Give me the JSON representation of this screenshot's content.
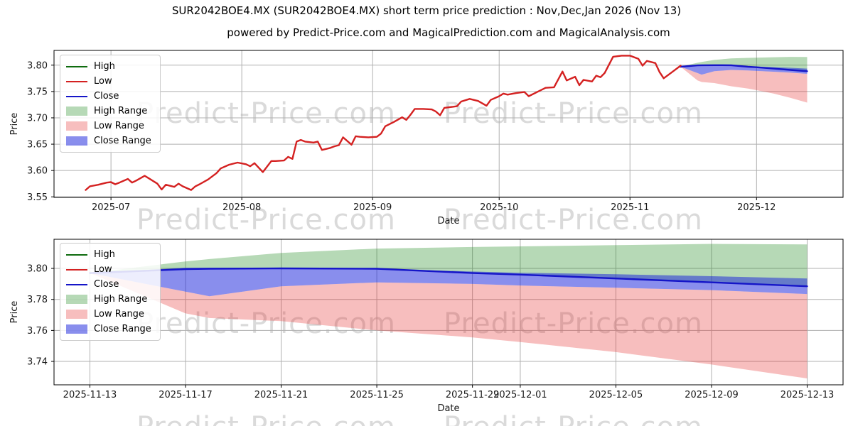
{
  "title": "SUR2042BOE4.MX (SUR2042BOE4.MX) short term price prediction : Nov,Dec,Jan 2026 (Nov 13)",
  "subtitle": "powered by Predict-Price.com and MagicalPrediction.com and MagicalAnalysis.com",
  "watermark": {
    "text": "Predict-Price.com",
    "color": "#dadada"
  },
  "colors": {
    "high_line": "#0e6b0e",
    "low_line": "#d42121",
    "close_line": "#1515c8",
    "high_band": "rgba(34,139,34,0.33)",
    "low_band": "rgba(230,40,40,0.30)",
    "close_band": "rgba(20,30,220,0.50)",
    "grid": "#b0b0b0",
    "frame": "#000000",
    "tick_label": "#1a1a1a"
  },
  "legend": {
    "items": [
      {
        "label": "High",
        "swatch": "line",
        "color_key": "high_line"
      },
      {
        "label": "Low",
        "swatch": "line",
        "color_key": "low_line"
      },
      {
        "label": "Close",
        "swatch": "line",
        "color_key": "close_line"
      },
      {
        "label": "High Range",
        "swatch": "patch",
        "color_key": "high_band"
      },
      {
        "label": "Low Range",
        "swatch": "patch",
        "color_key": "low_band"
      },
      {
        "label": "Close Range",
        "swatch": "patch",
        "color_key": "close_band"
      }
    ]
  },
  "prediction": {
    "start_date": "2025-11-13",
    "days_after_start": [
      0,
      4,
      5,
      8,
      12,
      16,
      18,
      22,
      26,
      30
    ],
    "close": [
      3.797,
      3.7995,
      3.7998,
      3.8,
      3.7998,
      3.797,
      3.796,
      3.7935,
      3.791,
      3.7885
    ],
    "high_range_top": [
      3.797,
      3.8045,
      3.806,
      3.81,
      3.8128,
      3.8138,
      3.8142,
      3.815,
      3.8158,
      3.8155
    ],
    "close_range_top": [
      3.797,
      3.8005,
      3.8005,
      3.8005,
      3.7998,
      3.798,
      3.7972,
      3.7962,
      3.795,
      3.7935
    ],
    "close_range_bottom": [
      3.797,
      3.785,
      3.782,
      3.7885,
      3.791,
      3.79,
      3.789,
      3.7875,
      3.786,
      3.7835
    ],
    "low_range_bottom": [
      3.797,
      3.771,
      3.768,
      3.766,
      3.76,
      3.7555,
      3.7525,
      3.746,
      3.738,
      3.729
    ]
  },
  "chart_data": [
    {
      "type": "line",
      "name": "history-chart",
      "xlabel": "Date",
      "ylabel": "Price",
      "x_unit": "days since 2025-06-25",
      "xlim_days": [
        -7.5,
        179.5
      ],
      "ylim": [
        3.549,
        3.828
      ],
      "xticks": [
        {
          "day": 6,
          "label": "2025-07"
        },
        {
          "day": 37,
          "label": "2025-08"
        },
        {
          "day": 68,
          "label": "2025-09"
        },
        {
          "day": 98,
          "label": "2025-10"
        },
        {
          "day": 129,
          "label": "2025-11"
        },
        {
          "day": 159,
          "label": "2025-12"
        }
      ],
      "yticks": [
        3.55,
        3.6,
        3.65,
        3.7,
        3.75,
        3.8
      ],
      "prediction_day_offset": 141,
      "low_history_series": {
        "name": "Low",
        "points": [
          [
            0,
            3.563
          ],
          [
            1,
            3.57
          ],
          [
            3,
            3.573
          ],
          [
            5,
            3.577
          ],
          [
            6,
            3.578
          ],
          [
            7,
            3.574
          ],
          [
            8,
            3.577
          ],
          [
            10,
            3.584
          ],
          [
            11,
            3.577
          ],
          [
            12,
            3.581
          ],
          [
            14,
            3.59
          ],
          [
            15,
            3.585
          ],
          [
            17,
            3.575
          ],
          [
            18,
            3.564
          ],
          [
            19,
            3.573
          ],
          [
            21,
            3.569
          ],
          [
            22,
            3.575
          ],
          [
            23,
            3.57
          ],
          [
            25,
            3.563
          ],
          [
            26,
            3.57
          ],
          [
            27,
            3.574
          ],
          [
            29,
            3.583
          ],
          [
            31,
            3.595
          ],
          [
            32,
            3.604
          ],
          [
            34,
            3.611
          ],
          [
            36,
            3.615
          ],
          [
            38,
            3.612
          ],
          [
            39,
            3.608
          ],
          [
            40,
            3.614
          ],
          [
            42,
            3.597
          ],
          [
            44,
            3.618
          ],
          [
            45,
            3.618
          ],
          [
            47,
            3.619
          ],
          [
            48,
            3.626
          ],
          [
            49,
            3.622
          ],
          [
            50,
            3.655
          ],
          [
            51,
            3.658
          ],
          [
            52,
            3.655
          ],
          [
            54,
            3.653
          ],
          [
            55,
            3.655
          ],
          [
            56,
            3.639
          ],
          [
            58,
            3.643
          ],
          [
            59,
            3.646
          ],
          [
            60,
            3.648
          ],
          [
            61,
            3.663
          ],
          [
            63,
            3.649
          ],
          [
            64,
            3.665
          ],
          [
            65,
            3.664
          ],
          [
            67,
            3.663
          ],
          [
            69,
            3.664
          ],
          [
            70,
            3.67
          ],
          [
            71,
            3.684
          ],
          [
            73,
            3.692
          ],
          [
            75,
            3.701
          ],
          [
            76,
            3.696
          ],
          [
            77,
            3.706
          ],
          [
            78,
            3.717
          ],
          [
            80,
            3.717
          ],
          [
            82,
            3.716
          ],
          [
            83,
            3.712
          ],
          [
            84,
            3.705
          ],
          [
            85,
            3.719
          ],
          [
            87,
            3.721
          ],
          [
            88,
            3.722
          ],
          [
            89,
            3.731
          ],
          [
            91,
            3.736
          ],
          [
            93,
            3.732
          ],
          [
            95,
            3.723
          ],
          [
            96,
            3.734
          ],
          [
            98,
            3.741
          ],
          [
            99,
            3.746
          ],
          [
            100,
            3.744
          ],
          [
            102,
            3.747
          ],
          [
            104,
            3.749
          ],
          [
            105,
            3.741
          ],
          [
            107,
            3.749
          ],
          [
            109,
            3.757
          ],
          [
            111,
            3.758
          ],
          [
            113,
            3.788
          ],
          [
            114,
            3.771
          ],
          [
            116,
            3.778
          ],
          [
            117,
            3.762
          ],
          [
            118,
            3.772
          ],
          [
            120,
            3.769
          ],
          [
            121,
            3.78
          ],
          [
            122,
            3.777
          ],
          [
            123,
            3.785
          ],
          [
            125,
            3.816
          ],
          [
            127,
            3.818
          ],
          [
            129,
            3.818
          ],
          [
            131,
            3.812
          ],
          [
            132,
            3.799
          ],
          [
            133,
            3.808
          ],
          [
            135,
            3.804
          ],
          [
            136,
            3.787
          ],
          [
            137,
            3.775
          ],
          [
            139,
            3.787
          ],
          [
            141,
            3.799
          ]
        ]
      }
    },
    {
      "type": "line",
      "name": "prediction-chart",
      "xlabel": "Date",
      "ylabel": "Price",
      "x_unit": "days since 2025-11-13",
      "xlim_days": [
        -1.5,
        31.5
      ],
      "ylim": [
        3.7249,
        3.8188
      ],
      "xticks": [
        {
          "day": 0,
          "label": "2025-11-13"
        },
        {
          "day": 4,
          "label": "2025-11-17"
        },
        {
          "day": 8,
          "label": "2025-11-21"
        },
        {
          "day": 12,
          "label": "2025-11-25"
        },
        {
          "day": 16,
          "label": "2025-11-29"
        },
        {
          "day": 18,
          "label": "2025-12-01"
        },
        {
          "day": 22,
          "label": "2025-12-05"
        },
        {
          "day": 26,
          "label": "2025-12-09"
        },
        {
          "day": 30,
          "label": "2025-12-13"
        }
      ],
      "yticks": [
        3.74,
        3.76,
        3.78,
        3.8
      ],
      "prediction_day_offset": 0,
      "low_history_series": null
    }
  ]
}
